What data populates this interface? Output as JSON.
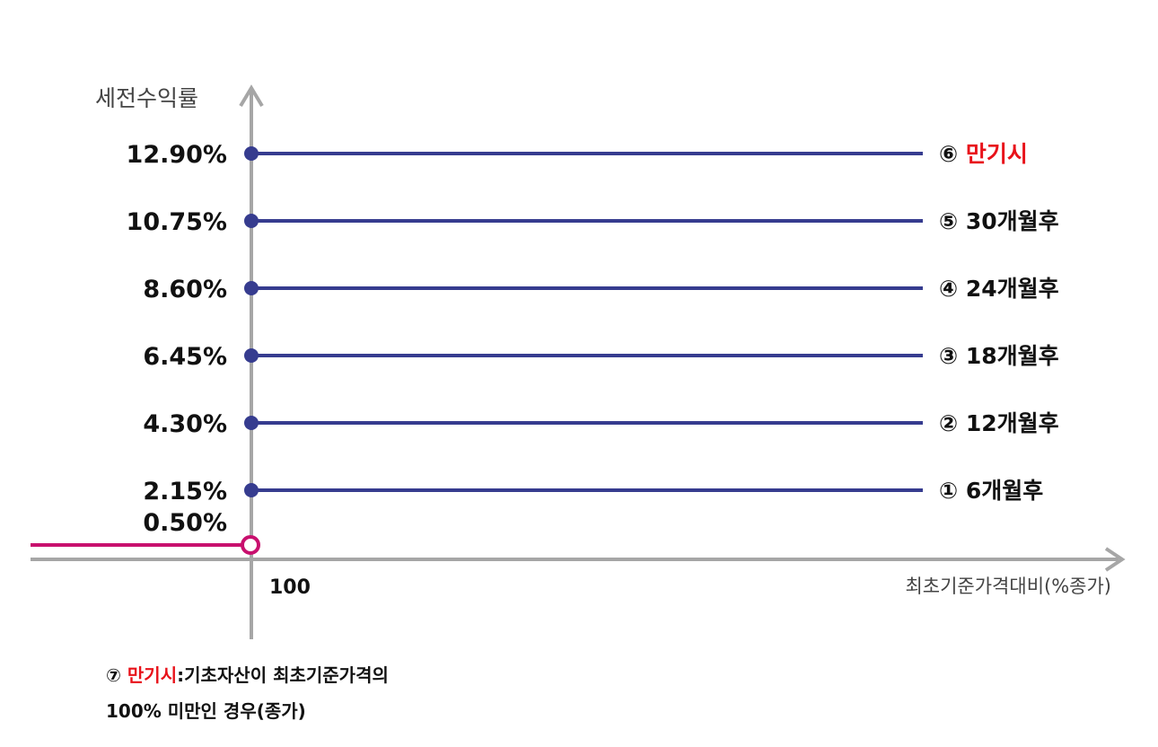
{
  "chart_data": {
    "type": "line",
    "ylabel": "세전수익률",
    "xlabel": "최초기준가격대비(%종가)",
    "x_tick": "100",
    "series": [
      {
        "marker": "①",
        "label": "6개월후",
        "value": 2.15,
        "value_label": "2.15%"
      },
      {
        "marker": "②",
        "label": "12개월후",
        "value": 4.3,
        "value_label": "4.30%"
      },
      {
        "marker": "③",
        "label": "18개월후",
        "value": 6.45,
        "value_label": "6.45%"
      },
      {
        "marker": "④",
        "label": "24개월후",
        "value": 8.6,
        "value_label": "8.60%"
      },
      {
        "marker": "⑤",
        "label": "30개월후",
        "value": 10.75,
        "value_label": "10.75%"
      },
      {
        "marker": "⑥",
        "label": "만기시",
        "value": 12.9,
        "value_label": "12.90%",
        "highlight": true
      }
    ],
    "loss_line": {
      "value": 0.5,
      "value_label": "0.50%",
      "range": "below 100"
    }
  },
  "colors": {
    "level_line": "#363c8f",
    "loss_line": "#c8106e",
    "axis": "#a6a6a6",
    "highlight_text": "#e8121a"
  },
  "footnote": {
    "marker": "⑦",
    "highlight": "만기시",
    "line1_rest": ":기초자산이 최초기준가격의",
    "line2": "100% 미만인 경우(종가)"
  }
}
